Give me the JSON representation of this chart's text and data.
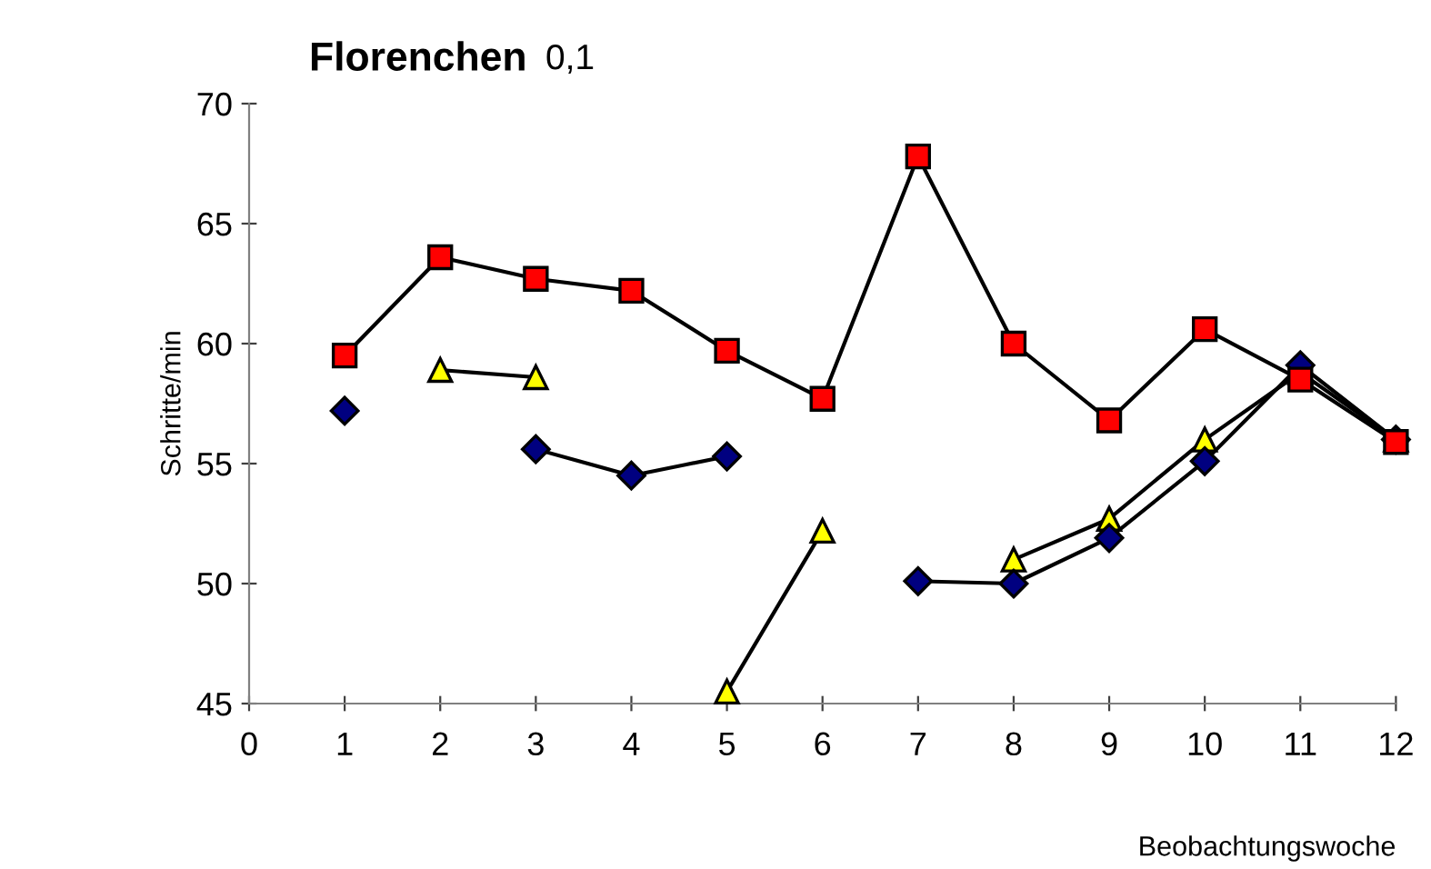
{
  "chart_data": {
    "type": "line",
    "title": "Florenchen",
    "subtitle": "0,1",
    "xlabel": "Beobachtungswoche",
    "ylabel": "Schritte/min",
    "x": [
      1,
      2,
      3,
      4,
      5,
      6,
      7,
      8,
      9,
      10,
      11,
      12
    ],
    "xlim": [
      0,
      12
    ],
    "xticks": [
      0,
      1,
      2,
      3,
      4,
      5,
      6,
      7,
      8,
      9,
      10,
      11,
      12
    ],
    "ylim": [
      45,
      70
    ],
    "yticks": [
      45,
      50,
      55,
      60,
      65,
      70
    ],
    "grid": false,
    "legend": false,
    "series": [
      {
        "color": "#ffff00",
        "marker": "triangle",
        "values": [
          null,
          58.9,
          58.6,
          null,
          45.5,
          52.2,
          null,
          51.0,
          52.7,
          56.0,
          58.8,
          56.0
        ]
      },
      {
        "color": "#000080",
        "marker": "diamond",
        "values": [
          57.2,
          null,
          55.6,
          54.5,
          55.3,
          null,
          50.1,
          50.0,
          51.9,
          55.1,
          59.1,
          56.0
        ]
      },
      {
        "color": "#ff0000",
        "marker": "square",
        "values": [
          59.5,
          63.6,
          62.7,
          62.2,
          59.7,
          57.7,
          67.8,
          60.0,
          56.8,
          60.6,
          58.5,
          55.9
        ]
      }
    ]
  }
}
